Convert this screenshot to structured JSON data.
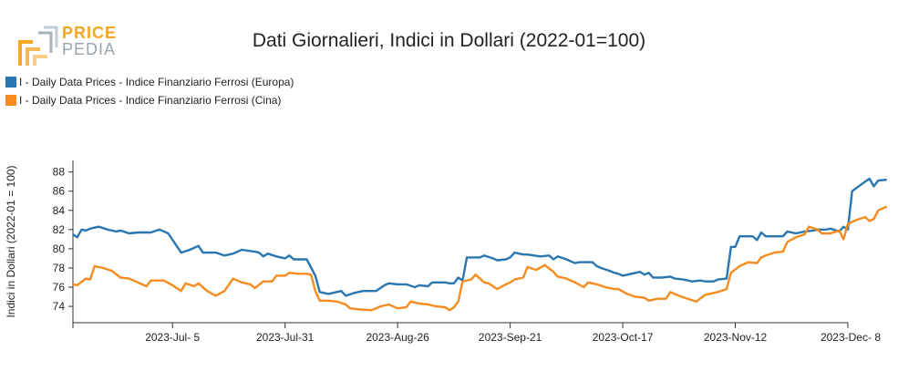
{
  "logo": {
    "line1": "PRICE",
    "line2": "PEDIA"
  },
  "colors": {
    "europa": "#2a76b0",
    "cina": "#f68b1e",
    "logo_orange": "#f5a623",
    "logo_grey": "#9aa5ad"
  },
  "chart_data": {
    "type": "line",
    "title": "Dati Giornalieri, Indici in Dollari (2022-01=100)",
    "ylabel": "Indici in Dollari (2022-01 = 100)",
    "xlabel": "",
    "ylim": [
      72.3,
      89.2
    ],
    "yticks": [
      74,
      76,
      78,
      80,
      82,
      84,
      86,
      88
    ],
    "x_start": "2023-06-12",
    "x_end": "2023-12-08",
    "xticks": [
      {
        "date": "2023-07-05",
        "label": "2023-Jul- 5"
      },
      {
        "date": "2023-07-31",
        "label": "2023-Jul-31"
      },
      {
        "date": "2023-08-26",
        "label": "2023-Aug-26"
      },
      {
        "date": "2023-09-21",
        "label": "2023-Sep-21"
      },
      {
        "date": "2023-10-17",
        "label": "2023-Oct-17"
      },
      {
        "date": "2023-11-12",
        "label": "2023-Nov-12"
      },
      {
        "date": "2023-12-08",
        "label": "2023-Dec- 8"
      }
    ],
    "legend_position": "top-left",
    "series": [
      {
        "name": "I - Daily Data Prices - Indice Finanziario Ferrosi (Europa)",
        "color": "#2a76b0",
        "points": [
          [
            "2023-06-12",
            81.5
          ],
          [
            "2023-06-13",
            81.2
          ],
          [
            "2023-06-14",
            82.0
          ],
          [
            "2023-06-15",
            81.9
          ],
          [
            "2023-06-16",
            82.1
          ],
          [
            "2023-06-17",
            82.2
          ],
          [
            "2023-06-18",
            82.3
          ],
          [
            "2023-06-20",
            82.0
          ],
          [
            "2023-06-22",
            81.8
          ],
          [
            "2023-06-23",
            81.9
          ],
          [
            "2023-06-25",
            81.6
          ],
          [
            "2023-06-27",
            81.7
          ],
          [
            "2023-06-30",
            81.7
          ],
          [
            "2023-07-02",
            82.0
          ],
          [
            "2023-07-04",
            81.6
          ],
          [
            "2023-07-07",
            79.6
          ],
          [
            "2023-07-09",
            79.9
          ],
          [
            "2023-07-11",
            80.3
          ],
          [
            "2023-07-12",
            79.6
          ],
          [
            "2023-07-15",
            79.6
          ],
          [
            "2023-07-17",
            79.3
          ],
          [
            "2023-07-19",
            79.5
          ],
          [
            "2023-07-21",
            79.9
          ],
          [
            "2023-07-24",
            79.7
          ],
          [
            "2023-07-25",
            79.6
          ],
          [
            "2023-07-26",
            79.2
          ],
          [
            "2023-07-27",
            79.5
          ],
          [
            "2023-07-29",
            79.2
          ],
          [
            "2023-07-31",
            79.0
          ],
          [
            "2023-08-01",
            79.3
          ],
          [
            "2023-08-02",
            78.9
          ],
          [
            "2023-08-05",
            78.9
          ],
          [
            "2023-08-07",
            77.2
          ],
          [
            "2023-08-08",
            75.5
          ],
          [
            "2023-08-10",
            75.3
          ],
          [
            "2023-08-13",
            75.6
          ],
          [
            "2023-08-14",
            75.1
          ],
          [
            "2023-08-16",
            75.4
          ],
          [
            "2023-08-18",
            75.6
          ],
          [
            "2023-08-21",
            75.6
          ],
          [
            "2023-08-23",
            76.2
          ],
          [
            "2023-08-24",
            76.4
          ],
          [
            "2023-08-26",
            76.3
          ],
          [
            "2023-08-28",
            76.3
          ],
          [
            "2023-08-30",
            76.0
          ],
          [
            "2023-08-31",
            76.2
          ],
          [
            "2023-09-02",
            76.1
          ],
          [
            "2023-09-03",
            76.5
          ],
          [
            "2023-09-06",
            76.5
          ],
          [
            "2023-09-07",
            76.4
          ],
          [
            "2023-09-08",
            76.4
          ],
          [
            "2023-09-09",
            77.0
          ],
          [
            "2023-09-10",
            76.7
          ],
          [
            "2023-09-11",
            79.1
          ],
          [
            "2023-09-14",
            79.1
          ],
          [
            "2023-09-15",
            79.3
          ],
          [
            "2023-09-17",
            79.0
          ],
          [
            "2023-09-18",
            78.8
          ],
          [
            "2023-09-20",
            78.9
          ],
          [
            "2023-09-21",
            79.1
          ],
          [
            "2023-09-22",
            79.6
          ],
          [
            "2023-09-24",
            79.4
          ],
          [
            "2023-09-25",
            79.4
          ],
          [
            "2023-09-28",
            79.2
          ],
          [
            "2023-09-30",
            79.3
          ],
          [
            "2023-10-01",
            78.9
          ],
          [
            "2023-10-02",
            79.2
          ],
          [
            "2023-10-04",
            78.9
          ],
          [
            "2023-10-06",
            78.5
          ],
          [
            "2023-10-07",
            78.6
          ],
          [
            "2023-10-10",
            78.6
          ],
          [
            "2023-10-11",
            78.2
          ],
          [
            "2023-10-12",
            78.0
          ],
          [
            "2023-10-14",
            77.7
          ],
          [
            "2023-10-15",
            77.5
          ],
          [
            "2023-10-16",
            77.4
          ],
          [
            "2023-10-17",
            77.2
          ],
          [
            "2023-10-19",
            77.4
          ],
          [
            "2023-10-21",
            77.6
          ],
          [
            "2023-10-22",
            77.3
          ],
          [
            "2023-10-23",
            77.5
          ],
          [
            "2023-10-24",
            77.0
          ],
          [
            "2023-10-26",
            77.0
          ],
          [
            "2023-10-28",
            77.1
          ],
          [
            "2023-10-29",
            76.9
          ],
          [
            "2023-10-31",
            76.8
          ],
          [
            "2023-11-02",
            76.6
          ],
          [
            "2023-11-04",
            76.7
          ],
          [
            "2023-11-05",
            76.6
          ],
          [
            "2023-11-07",
            76.6
          ],
          [
            "2023-11-08",
            76.8
          ],
          [
            "2023-11-10",
            76.9
          ],
          [
            "2023-11-11",
            80.2
          ],
          [
            "2023-11-12",
            80.2
          ],
          [
            "2023-11-13",
            81.3
          ],
          [
            "2023-11-16",
            81.3
          ],
          [
            "2023-11-17",
            80.9
          ],
          [
            "2023-11-18",
            81.7
          ],
          [
            "2023-11-19",
            81.3
          ],
          [
            "2023-11-21",
            81.3
          ],
          [
            "2023-11-23",
            81.3
          ],
          [
            "2023-11-24",
            81.8
          ],
          [
            "2023-11-26",
            81.6
          ],
          [
            "2023-11-28",
            81.8
          ],
          [
            "2023-11-30",
            81.9
          ],
          [
            "2023-12-01",
            82.0
          ],
          [
            "2023-12-03",
            82.0
          ],
          [
            "2023-12-04",
            82.1
          ],
          [
            "2023-12-06",
            81.8
          ],
          [
            "2023-12-07",
            82.3
          ],
          [
            "2023-12-08",
            82.0
          ],
          [
            "2023-12-09",
            86.0
          ],
          [
            "2023-12-12",
            87.0
          ],
          [
            "2023-12-13",
            87.3
          ],
          [
            "2023-12-14",
            86.5
          ],
          [
            "2023-12-15",
            87.1
          ],
          [
            "2023-12-17",
            87.2
          ]
        ]
      },
      {
        "name": "I - Daily Data Prices - Indice Finanziario Ferrosi (Cina)",
        "color": "#f68b1e",
        "points": [
          [
            "2023-06-12",
            76.3
          ],
          [
            "2023-06-13",
            76.2
          ],
          [
            "2023-06-15",
            76.9
          ],
          [
            "2023-06-16",
            76.8
          ],
          [
            "2023-06-17",
            78.2
          ],
          [
            "2023-06-19",
            78.0
          ],
          [
            "2023-06-21",
            77.7
          ],
          [
            "2023-06-23",
            77.0
          ],
          [
            "2023-06-25",
            76.9
          ],
          [
            "2023-06-27",
            76.5
          ],
          [
            "2023-06-29",
            76.1
          ],
          [
            "2023-06-30",
            76.7
          ],
          [
            "2023-07-03",
            76.7
          ],
          [
            "2023-07-05",
            76.2
          ],
          [
            "2023-07-07",
            75.6
          ],
          [
            "2023-07-08",
            76.4
          ],
          [
            "2023-07-10",
            76.1
          ],
          [
            "2023-07-11",
            76.4
          ],
          [
            "2023-07-13",
            75.6
          ],
          [
            "2023-07-15",
            75.1
          ],
          [
            "2023-07-17",
            75.6
          ],
          [
            "2023-07-19",
            76.9
          ],
          [
            "2023-07-21",
            76.5
          ],
          [
            "2023-07-23",
            76.3
          ],
          [
            "2023-07-24",
            75.9
          ],
          [
            "2023-07-26",
            76.6
          ],
          [
            "2023-07-28",
            76.6
          ],
          [
            "2023-07-29",
            77.2
          ],
          [
            "2023-07-31",
            77.2
          ],
          [
            "2023-08-01",
            77.5
          ],
          [
            "2023-08-03",
            77.4
          ],
          [
            "2023-08-05",
            77.4
          ],
          [
            "2023-08-06",
            77.3
          ],
          [
            "2023-08-07",
            75.6
          ],
          [
            "2023-08-08",
            74.6
          ],
          [
            "2023-08-10",
            74.6
          ],
          [
            "2023-08-12",
            74.5
          ],
          [
            "2023-08-14",
            74.2
          ],
          [
            "2023-08-15",
            73.8
          ],
          [
            "2023-08-17",
            73.7
          ],
          [
            "2023-08-20",
            73.6
          ],
          [
            "2023-08-22",
            74.0
          ],
          [
            "2023-08-24",
            74.2
          ],
          [
            "2023-08-26",
            73.8
          ],
          [
            "2023-08-28",
            73.9
          ],
          [
            "2023-08-29",
            74.5
          ],
          [
            "2023-08-31",
            74.3
          ],
          [
            "2023-09-02",
            74.2
          ],
          [
            "2023-09-04",
            74.0
          ],
          [
            "2023-09-06",
            73.9
          ],
          [
            "2023-09-07",
            73.6
          ],
          [
            "2023-09-08",
            73.9
          ],
          [
            "2023-09-09",
            74.5
          ],
          [
            "2023-09-10",
            76.6
          ],
          [
            "2023-09-12",
            76.8
          ],
          [
            "2023-09-13",
            77.3
          ],
          [
            "2023-09-15",
            76.5
          ],
          [
            "2023-09-16",
            76.4
          ],
          [
            "2023-09-18",
            75.8
          ],
          [
            "2023-09-20",
            76.3
          ],
          [
            "2023-09-21",
            76.5
          ],
          [
            "2023-09-22",
            76.8
          ],
          [
            "2023-09-24",
            77.0
          ],
          [
            "2023-09-25",
            78.1
          ],
          [
            "2023-09-27",
            77.8
          ],
          [
            "2023-09-29",
            78.3
          ],
          [
            "2023-10-01",
            77.6
          ],
          [
            "2023-10-02",
            77.1
          ],
          [
            "2023-10-04",
            76.9
          ],
          [
            "2023-10-06",
            76.5
          ],
          [
            "2023-10-08",
            76.0
          ],
          [
            "2023-10-09",
            76.5
          ],
          [
            "2023-10-11",
            76.3
          ],
          [
            "2023-10-13",
            76.0
          ],
          [
            "2023-10-15",
            75.8
          ],
          [
            "2023-10-16",
            75.8
          ],
          [
            "2023-10-18",
            75.3
          ],
          [
            "2023-10-20",
            75.0
          ],
          [
            "2023-10-22",
            74.9
          ],
          [
            "2023-10-23",
            74.6
          ],
          [
            "2023-10-25",
            74.8
          ],
          [
            "2023-10-27",
            74.8
          ],
          [
            "2023-10-28",
            75.5
          ],
          [
            "2023-10-30",
            75.1
          ],
          [
            "2023-11-01",
            74.8
          ],
          [
            "2023-11-03",
            74.5
          ],
          [
            "2023-11-05",
            75.2
          ],
          [
            "2023-11-06",
            75.3
          ],
          [
            "2023-11-08",
            75.5
          ],
          [
            "2023-11-10",
            75.8
          ],
          [
            "2023-11-11",
            77.5
          ],
          [
            "2023-11-13",
            78.2
          ],
          [
            "2023-11-15",
            78.6
          ],
          [
            "2023-11-17",
            78.5
          ],
          [
            "2023-11-18",
            79.1
          ],
          [
            "2023-11-19",
            79.3
          ],
          [
            "2023-11-21",
            79.6
          ],
          [
            "2023-11-23",
            79.7
          ],
          [
            "2023-11-24",
            80.7
          ],
          [
            "2023-11-26",
            81.2
          ],
          [
            "2023-11-28",
            81.5
          ],
          [
            "2023-11-29",
            82.3
          ],
          [
            "2023-12-01",
            82.0
          ],
          [
            "2023-12-02",
            81.6
          ],
          [
            "2023-12-04",
            81.6
          ],
          [
            "2023-12-06",
            81.9
          ],
          [
            "2023-12-07",
            81.0
          ],
          [
            "2023-12-08",
            82.6
          ],
          [
            "2023-12-10",
            83.0
          ],
          [
            "2023-12-12",
            83.3
          ],
          [
            "2023-12-13",
            82.9
          ],
          [
            "2023-12-14",
            83.1
          ],
          [
            "2023-12-15",
            84.0
          ],
          [
            "2023-12-17",
            84.4
          ]
        ]
      }
    ]
  }
}
